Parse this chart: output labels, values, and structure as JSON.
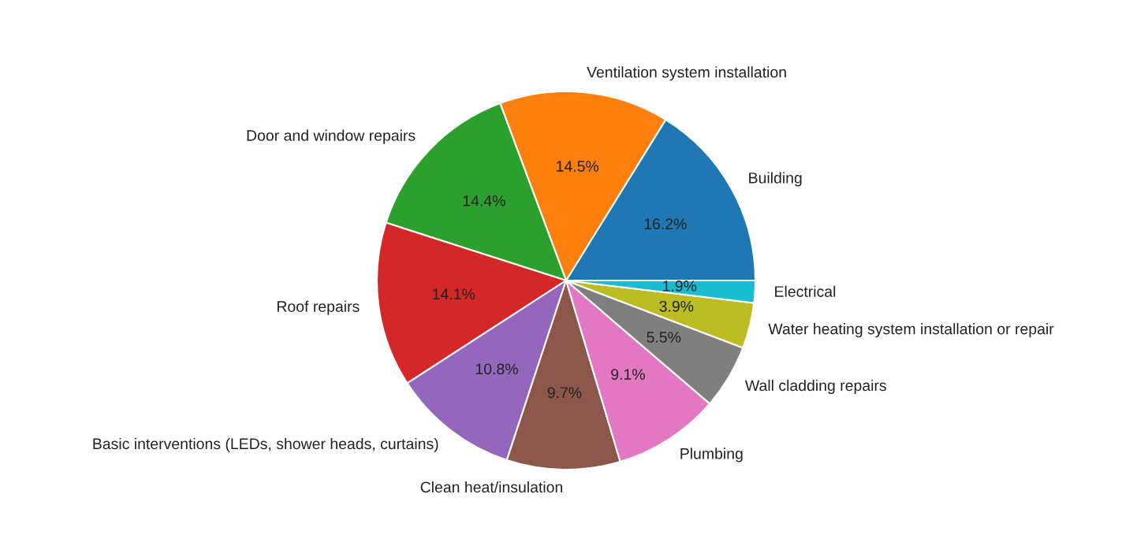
{
  "chart_data": {
    "type": "pie",
    "categories": [
      "Building",
      "Ventilation system installation",
      "Door and window repairs",
      "Roof repairs",
      "Basic interventions (LEDs, shower heads, curtains)",
      "Clean heat/insulation",
      "Plumbing",
      "Wall cladding repairs",
      "Water heating system installation or repair",
      "Electrical"
    ],
    "values": [
      16.2,
      14.5,
      14.4,
      14.1,
      10.8,
      9.7,
      9.1,
      5.5,
      3.9,
      1.9
    ],
    "value_labels": [
      "16.2%",
      "14.5%",
      "14.4%",
      "14.1%",
      "10.8%",
      "9.7%",
      "9.1%",
      "5.5%",
      "3.9%",
      "1.9%"
    ],
    "colors": [
      "#1f77b4",
      "#ff7f0e",
      "#2ca02c",
      "#d62728",
      "#9467bd",
      "#8c564b",
      "#e377c2",
      "#7f7f7f",
      "#bcbd22",
      "#17becf"
    ]
  }
}
